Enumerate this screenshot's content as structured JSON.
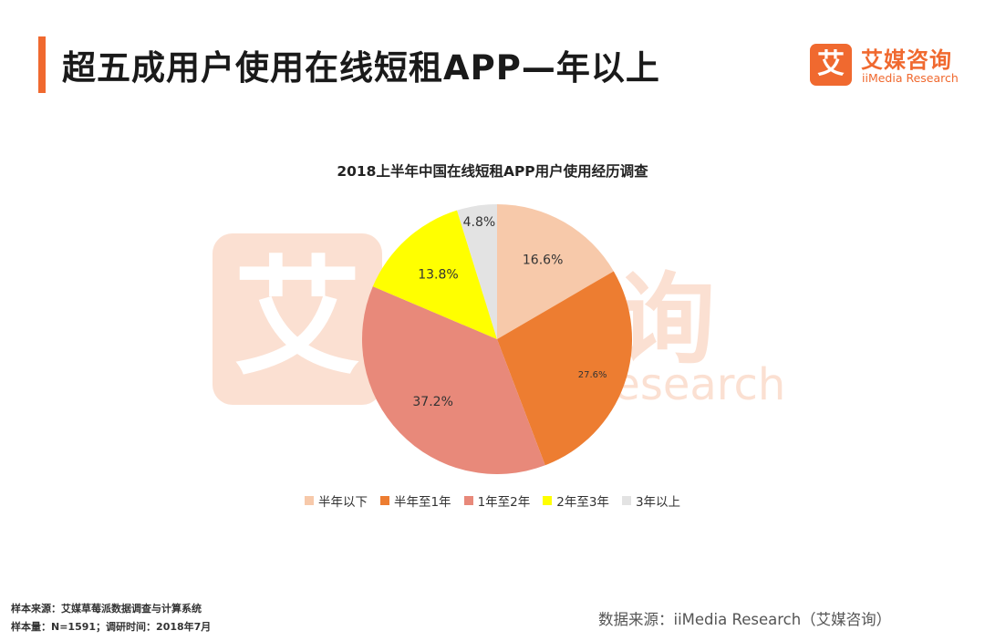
{
  "header": {
    "title": "超五成用户使用在线短租APP—年以上",
    "brand_mark": "艾",
    "brand_cn": "艾媒咨询",
    "brand_en": "iiMedia Research"
  },
  "watermark": {
    "mark": "艾",
    "cn": "媒咨询",
    "en": "iiMedia Research"
  },
  "colors": {
    "accent": "#f0692f"
  },
  "chart_data": {
    "type": "pie",
    "title": "2018上半年中国在线短租APP用户使用经历调查",
    "slices": [
      {
        "label": "半年以下",
        "value": 16.6,
        "display": "16.6%",
        "color": "#f7c9aa"
      },
      {
        "label": "半年至1年",
        "value": 27.6,
        "display": "27.6%",
        "color": "#ed7d31"
      },
      {
        "label": "1年至2年",
        "value": 37.2,
        "display": "37.2%",
        "color": "#e8897a"
      },
      {
        "label": "2年至3年",
        "value": 13.8,
        "display": "13.8%",
        "color": "#ffff00"
      },
      {
        "label": "3年以上",
        "value": 4.8,
        "display": "4.8%",
        "color": "#e3e3e3"
      }
    ],
    "legend_position": "bottom"
  },
  "footer": {
    "sample_source": "样本来源：艾媒草莓派数据调查与计算系统",
    "sample_size": "样本量：N=1591；调研时间：2018年7月",
    "data_source": "数据来源：iiMedia Research（艾媒咨询）"
  }
}
